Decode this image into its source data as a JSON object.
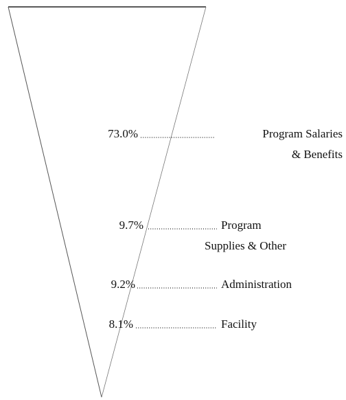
{
  "chart_data": {
    "type": "funnel",
    "categories": [
      "Program Salaries\n& Benefits",
      "Program\nSupplies & Other",
      "Administration",
      "Facility"
    ],
    "values": [
      73.0,
      9.7,
      9.2,
      8.1
    ],
    "value_labels": [
      "73.0%",
      "9.7%",
      "9.2%",
      "8.1%"
    ]
  }
}
